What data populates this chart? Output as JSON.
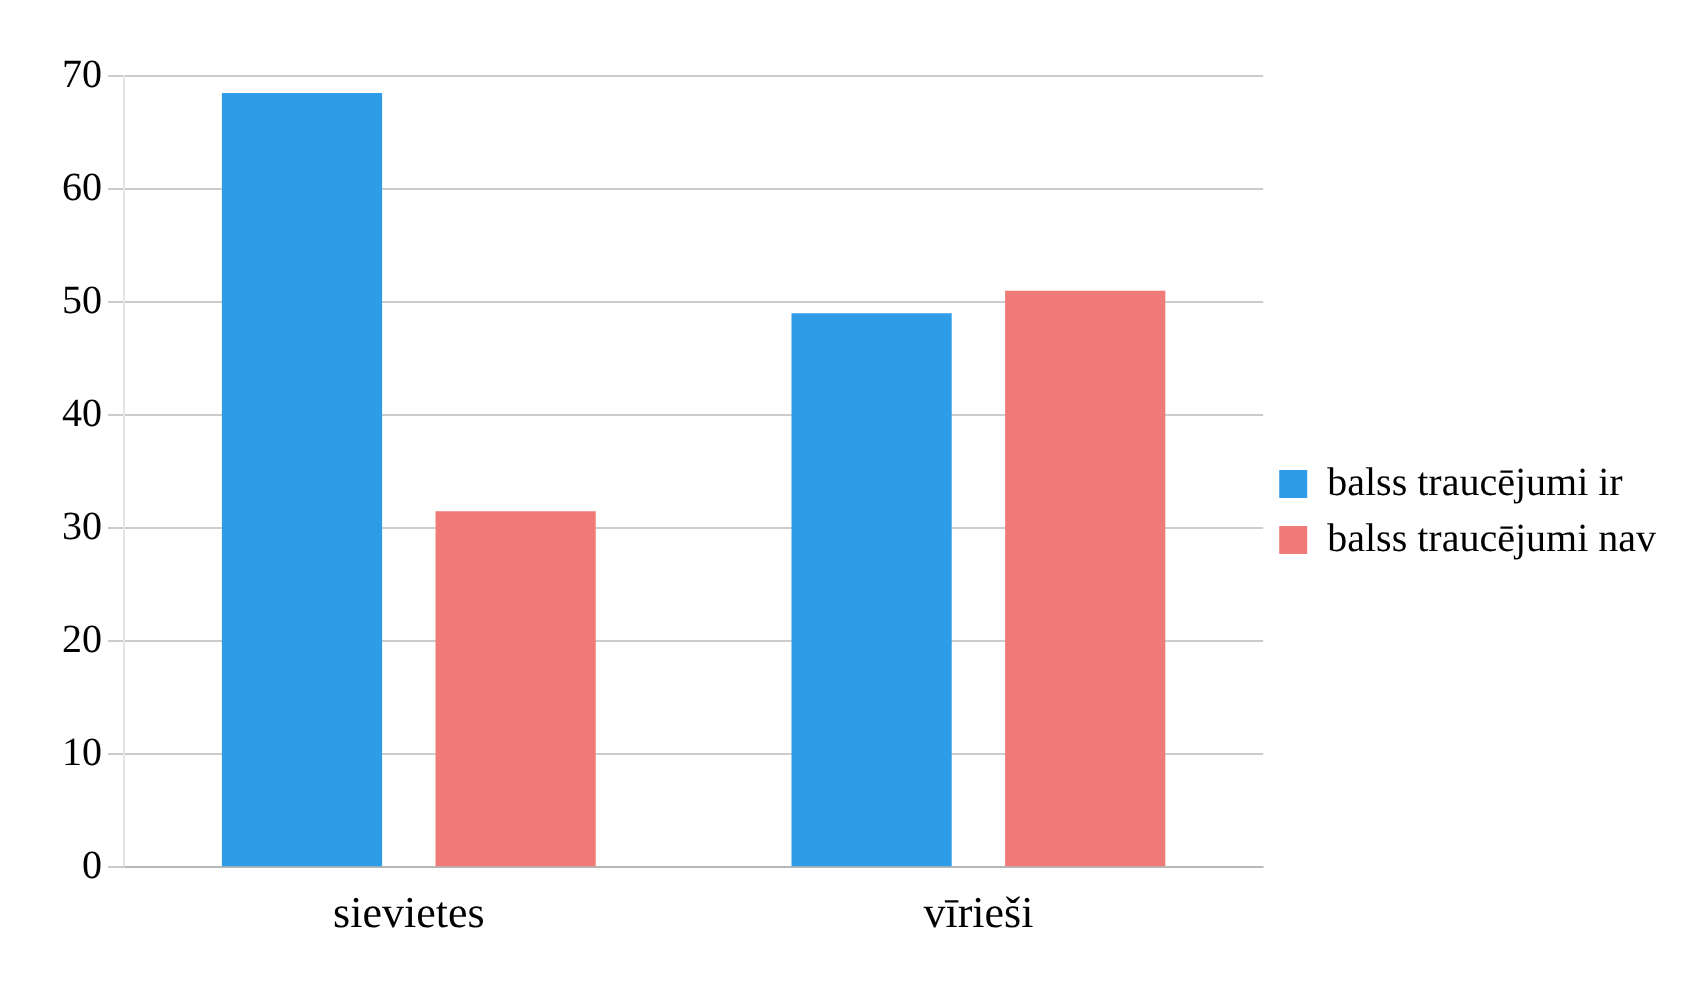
{
  "chart_data": {
    "type": "bar",
    "categories": [
      "sievietes",
      "vīrieši"
    ],
    "series": [
      {
        "name": "balss traucējumi ir",
        "color": "#2e9ce6",
        "values": [
          68.5,
          49
        ]
      },
      {
        "name": "balss traucējumi nav",
        "color": "#f07a78",
        "values": [
          31.5,
          51
        ]
      }
    ],
    "ylim": [
      0,
      70
    ],
    "yticks": [
      0,
      10,
      20,
      30,
      40,
      50,
      60,
      70
    ],
    "grid": "y",
    "legend": "right"
  }
}
